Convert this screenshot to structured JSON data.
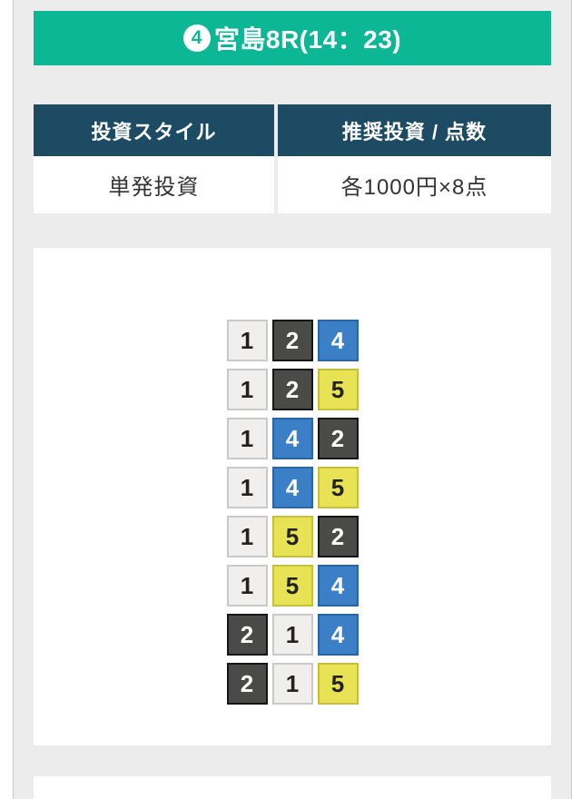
{
  "race_header": {
    "boat_number": "4",
    "title": "宮島8R(14：23)"
  },
  "info_table": {
    "columns": [
      {
        "header": "投資スタイル",
        "value": "単発投資"
      },
      {
        "header": "推奨投資 / 点数",
        "value": "各1000円×8点"
      }
    ]
  },
  "combinations": {
    "rows": [
      [
        1,
        2,
        4
      ],
      [
        1,
        2,
        5
      ],
      [
        1,
        4,
        2
      ],
      [
        1,
        4,
        5
      ],
      [
        1,
        5,
        2
      ],
      [
        1,
        5,
        4
      ],
      [
        2,
        1,
        4
      ],
      [
        2,
        1,
        5
      ]
    ]
  },
  "colors": {
    "header_teal": "#0cb795",
    "table_header_navy": "#1d4b63",
    "page_background": "#ececec",
    "boat_colors": {
      "1": {
        "bg": "#f0efed",
        "border": "#c9c9c7",
        "text": "#222222"
      },
      "2": {
        "bg": "#4a4a48",
        "border": "#161616",
        "text": "#ffffff"
      },
      "4": {
        "bg": "#3b80c6",
        "border": "#2a65a4",
        "text": "#ffffff"
      },
      "5": {
        "bg": "#e8e255",
        "border": "#c5be3e",
        "text": "#222222"
      }
    }
  }
}
